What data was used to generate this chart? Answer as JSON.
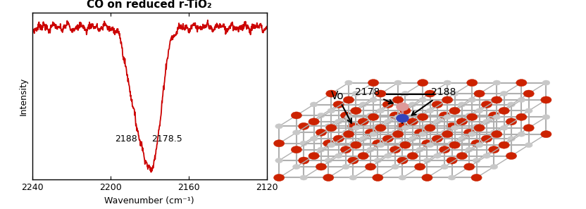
{
  "title": "CO on reduced r-TiO₂",
  "xlabel": "Wavenumber (cm⁻¹)",
  "ylabel": "Intensity",
  "xlim": [
    2240,
    2120
  ],
  "x_ticks": [
    2240,
    2200,
    2160,
    2120
  ],
  "line_color": "#cc0000",
  "line_width": 1.3,
  "annotation_2188": "2188",
  "annotation_2178": "2178.5",
  "right_label_2178": "2178",
  "right_label_2188": "2188",
  "vo_label": "Vo",
  "o_color": "#cc2200",
  "ti_color": "#c8c8c8",
  "co_o_color": "#dd9999",
  "co_c_color": "#3344bb",
  "title_fontsize": 11,
  "axis_fontsize": 9,
  "tick_fontsize": 9,
  "annot_fontsize": 9
}
